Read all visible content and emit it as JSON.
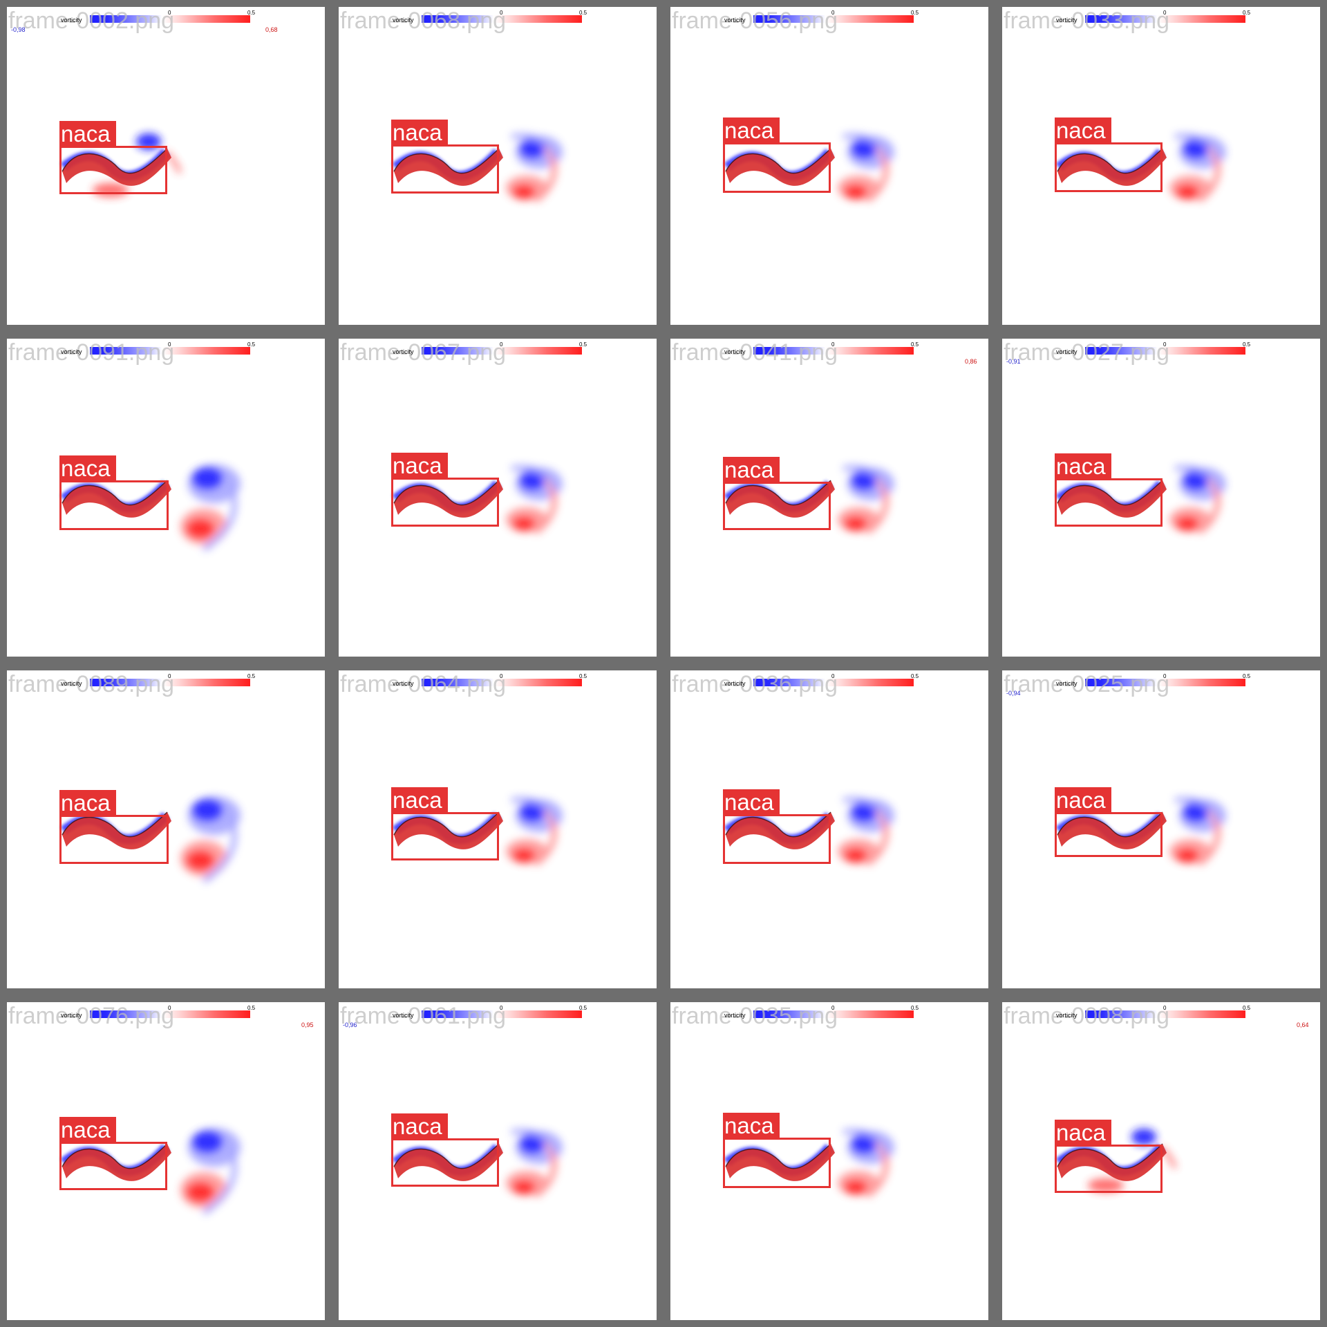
{
  "grid": {
    "columns": 4,
    "rows": 4
  },
  "colors": {
    "border": "#6e6e6e",
    "positive": "#ff1e1e",
    "negative": "#2020ff",
    "box": "#e53333",
    "filename": "#bebebe"
  },
  "legend": {
    "title": "vorticity",
    "tick_0": "0",
    "tick_05": "0.5"
  },
  "tiles": [
    {
      "filename": "frame-0002.png",
      "label": "naca",
      "max_value": "0,68",
      "min_value": "-0,98",
      "variant": "short"
    },
    {
      "filename": "frame-0068.png",
      "label": "naca",
      "variant": "wake"
    },
    {
      "filename": "frame-0056.png",
      "label": "naca",
      "variant": "wake"
    },
    {
      "filename": "frame-0033.png",
      "label": "naca",
      "variant": "wake"
    },
    {
      "filename": "frame-0091.png",
      "label": "naca",
      "variant": "wide"
    },
    {
      "filename": "frame-0067.png",
      "label": "naca",
      "variant": "wake"
    },
    {
      "filename": "frame-0041.png",
      "label": "naca",
      "max_value": "0,86",
      "variant": "wake"
    },
    {
      "filename": "frame-0027.png",
      "label": "naca",
      "min_value": "-0,91",
      "variant": "wake"
    },
    {
      "filename": "frame-0089.png",
      "label": "naca",
      "variant": "wide"
    },
    {
      "filename": "frame-0064.png",
      "label": "naca",
      "variant": "wake"
    },
    {
      "filename": "frame-0036.png",
      "label": "naca",
      "variant": "wake"
    },
    {
      "filename": "frame-0025.png",
      "label": "naca",
      "min_value": "-0,94",
      "variant": "wake"
    },
    {
      "filename": "frame-0076.png",
      "label": "naca",
      "max_value": "0,95",
      "variant": "wide"
    },
    {
      "filename": "frame-0061.png",
      "label": "naca",
      "min_value": "-0,96",
      "variant": "wake"
    },
    {
      "filename": "frame-0035.png",
      "label": "naca",
      "variant": "wake"
    },
    {
      "filename": "frame-0008.png",
      "label": "naca",
      "max_value": "0,64",
      "variant": "short"
    }
  ]
}
